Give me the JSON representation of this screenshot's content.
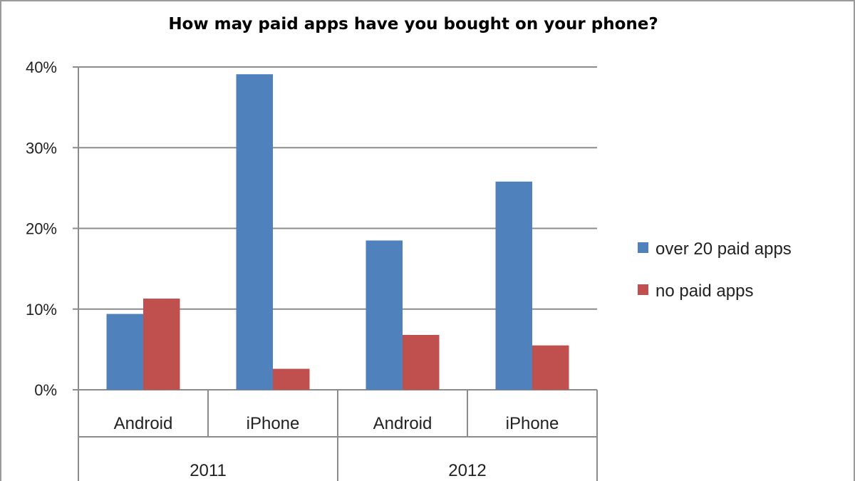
{
  "chart_data": {
    "type": "bar",
    "title": "How may paid apps have you bought on your phone?",
    "xlabel": "",
    "ylabel": "",
    "categories": [
      "Android",
      "iPhone",
      "Android",
      "iPhone"
    ],
    "groups": [
      {
        "label": "2011",
        "categories": [
          "Android",
          "iPhone"
        ]
      },
      {
        "label": "2012",
        "categories": [
          "Android",
          "iPhone"
        ]
      }
    ],
    "series": [
      {
        "name": "over 20 paid apps",
        "color": "#4f81bd",
        "values": [
          9.4,
          39.1,
          18.5,
          25.8
        ]
      },
      {
        "name": "no paid apps",
        "color": "#c0504d",
        "values": [
          11.3,
          2.6,
          6.8,
          5.5
        ]
      }
    ],
    "ylim": [
      0,
      40
    ],
    "yticks": [
      "0%",
      "10%",
      "20%",
      "30%",
      "40%"
    ],
    "grid": true,
    "legend": "right"
  }
}
